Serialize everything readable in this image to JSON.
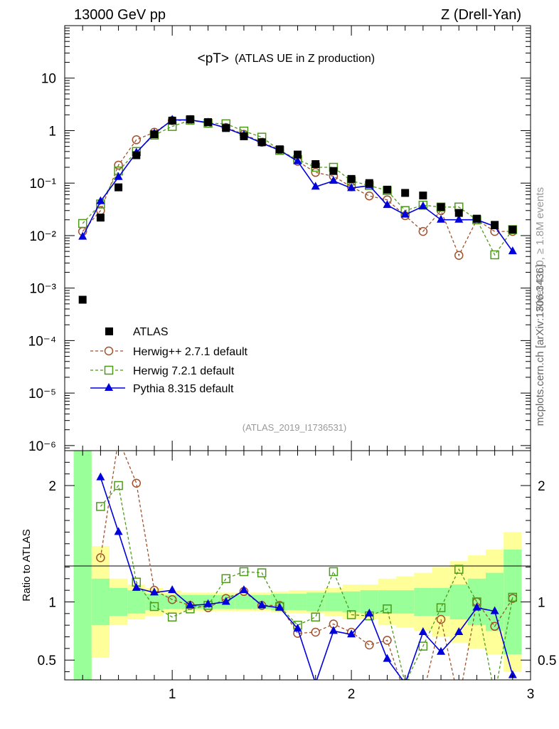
{
  "header": {
    "energy_label": "13000 GeV pp",
    "process_label": "Z (Drell-Yan)"
  },
  "side_labels": {
    "rivet": "Rivet 4.1.0, ≥ 1.8M events",
    "mcplots": "mcplots.cern.ch [arXiv:1306.3436]"
  },
  "chart_data": [
    {
      "type": "scatter",
      "panel": "main",
      "title": "<pT> (ATLAS UE in Z production)",
      "title_main": "<pT>",
      "title_sub": "(ATLAS UE in Z production)",
      "analysis_id": "(ATLAS_2019_I1736531)",
      "yscale": "log",
      "xlim": [
        0.4,
        3.0
      ],
      "ylim": [
        8e-07,
        100
      ],
      "y_ticks": [
        {
          "value": 10,
          "label": "10"
        },
        {
          "value": 1,
          "label": "1"
        },
        {
          "value": 0.1,
          "label": "10⁻¹"
        },
        {
          "value": 0.01,
          "label": "10⁻²"
        },
        {
          "value": 0.001,
          "label": "10⁻³"
        },
        {
          "value": 0.0001,
          "label": "10⁻⁴"
        },
        {
          "value": 1e-05,
          "label": "10⁻⁵"
        },
        {
          "value": 1e-06,
          "label": "10⁻⁶"
        }
      ],
      "legend_position": "bottom-left",
      "series": [
        {
          "name": "ATLAS",
          "legend_label": "ATLAS",
          "color": "#000000",
          "marker": "square-filled",
          "line": "none",
          "x": [
            0.5,
            0.6,
            0.7,
            0.8,
            0.9,
            1.0,
            1.1,
            1.2,
            1.3,
            1.4,
            1.5,
            1.6,
            1.7,
            1.8,
            1.9,
            2.0,
            2.1,
            2.2,
            2.3,
            2.4,
            2.5,
            2.6,
            2.7,
            2.8,
            2.9
          ],
          "y": [
            0.0006,
            0.022,
            0.083,
            0.34,
            0.85,
            1.55,
            1.65,
            1.45,
            1.12,
            0.78,
            0.6,
            0.44,
            0.35,
            0.23,
            0.17,
            0.12,
            0.1,
            0.075,
            0.065,
            0.058,
            0.035,
            0.027,
            0.021,
            0.016,
            0.013
          ]
        },
        {
          "name": "Herwig++ 2.7.1 default",
          "legend_label": "Herwig++ 2.7.1 default",
          "color": "#a0522d",
          "marker": "circle-open",
          "line": "dashed",
          "x": [
            0.5,
            0.6,
            0.7,
            0.8,
            0.9,
            1.0,
            1.1,
            1.2,
            1.3,
            1.4,
            1.5,
            1.6,
            1.7,
            1.8,
            1.9,
            2.0,
            2.1,
            2.2,
            2.3,
            2.4,
            2.5,
            2.6,
            2.7,
            2.8,
            2.9
          ],
          "y": [
            0.012,
            0.03,
            0.22,
            0.67,
            0.93,
            1.55,
            1.6,
            1.38,
            1.15,
            0.85,
            0.6,
            0.43,
            0.26,
            0.16,
            0.135,
            0.085,
            0.057,
            0.048,
            0.024,
            0.012,
            0.03,
            0.0042,
            0.02,
            0.012,
            0.012
          ]
        },
        {
          "name": "Herwig 7.2.1 default",
          "legend_label": "Herwig 7.2.1 default",
          "color": "#4d9a1a",
          "marker": "square-open",
          "line": "dashed",
          "x": [
            0.5,
            0.6,
            0.7,
            0.8,
            0.9,
            1.0,
            1.1,
            1.2,
            1.3,
            1.4,
            1.5,
            1.6,
            1.7,
            1.8,
            1.9,
            2.0,
            2.1,
            2.2,
            2.3,
            2.4,
            2.5,
            2.6,
            2.7,
            2.8,
            2.9
          ],
          "y": [
            0.017,
            0.04,
            0.17,
            0.4,
            0.82,
            1.2,
            1.58,
            1.38,
            1.35,
            0.98,
            0.75,
            0.42,
            0.28,
            0.2,
            0.2,
            0.11,
            0.09,
            0.072,
            0.03,
            0.038,
            0.035,
            0.035,
            0.02,
            0.0043,
            0.013
          ]
        },
        {
          "name": "Pythia 8.315 default",
          "legend_label": "Pythia 8.315 default",
          "color": "#0000dd",
          "marker": "triangle-filled",
          "line": "solid",
          "x": [
            0.5,
            0.6,
            0.7,
            0.8,
            0.9,
            1.0,
            1.1,
            1.2,
            1.3,
            1.4,
            1.5,
            1.6,
            1.7,
            1.8,
            1.9,
            2.0,
            2.1,
            2.2,
            2.3,
            2.4,
            2.5,
            2.6,
            2.7,
            2.8,
            2.9
          ],
          "y": [
            0.0095,
            0.045,
            0.13,
            0.38,
            0.88,
            1.6,
            1.6,
            1.42,
            1.12,
            0.82,
            0.58,
            0.42,
            0.26,
            0.085,
            0.11,
            0.08,
            0.09,
            0.038,
            0.025,
            0.036,
            0.02,
            0.02,
            0.02,
            0.015,
            0.005
          ]
        }
      ]
    },
    {
      "type": "line",
      "panel": "ratio",
      "ylabel": "Ratio to ATLAS",
      "xlim": [
        0.4,
        3.0
      ],
      "ylim": [
        0.33,
        2.3
      ],
      "x_ticks": [
        {
          "value": 1,
          "label": "1"
        },
        {
          "value": 2,
          "label": "2"
        },
        {
          "value": 3,
          "label": "3"
        }
      ],
      "y_ticks": [
        {
          "value": 0.5,
          "label": "0.5"
        },
        {
          "value": 1,
          "label": "1"
        },
        {
          "value": 2,
          "label": "2"
        }
      ],
      "uncertainty_band": {
        "inner_color": "#99ff99",
        "outer_color": "#ffff99",
        "x_edges": [
          0.45,
          0.55,
          0.65,
          0.75,
          0.85,
          0.95,
          1.05,
          1.15,
          1.25,
          1.35,
          1.45,
          1.55,
          1.65,
          1.75,
          1.85,
          1.95,
          2.05,
          2.15,
          2.25,
          2.35,
          2.45,
          2.55,
          2.65,
          2.75,
          2.85,
          2.95
        ],
        "inner_half": [
          2.0,
          0.2,
          0.12,
          0.1,
          0.07,
          0.06,
          0.06,
          0.06,
          0.06,
          0.06,
          0.06,
          0.07,
          0.07,
          0.08,
          0.08,
          0.09,
          0.1,
          0.1,
          0.1,
          0.12,
          0.12,
          0.15,
          0.2,
          0.25,
          0.45
        ],
        "outer_half": [
          2.0,
          0.48,
          0.2,
          0.15,
          0.12,
          0.1,
          0.08,
          0.08,
          0.08,
          0.08,
          0.08,
          0.09,
          0.1,
          0.1,
          0.12,
          0.15,
          0.15,
          0.2,
          0.22,
          0.25,
          0.3,
          0.35,
          0.4,
          0.45,
          0.6
        ]
      },
      "series": [
        {
          "name": "Herwig++ 2.7.1 default",
          "color": "#a0522d",
          "marker": "circle-open",
          "line": "dashed",
          "x": [
            0.6,
            0.7,
            0.8,
            0.9,
            1.0,
            1.1,
            1.2,
            1.3,
            1.4,
            1.5,
            1.6,
            1.7,
            1.8,
            1.9,
            2.0,
            2.1,
            2.2,
            2.3,
            2.4,
            2.5,
            2.6,
            2.7,
            2.8,
            2.9
          ],
          "y": [
            1.38,
            2.4,
            2.02,
            1.1,
            1.02,
            0.97,
            0.95,
            1.03,
            1.09,
            0.97,
            0.97,
            0.73,
            0.74,
            0.81,
            0.74,
            0.63,
            0.67,
            0.2,
            0.2,
            0.85,
            0.15,
            1.0,
            0.79,
            1.03
          ]
        },
        {
          "name": "Herwig 7.2.1 default",
          "color": "#4d9a1a",
          "marker": "square-open",
          "line": "dashed",
          "x": [
            0.6,
            0.7,
            0.8,
            0.9,
            1.0,
            1.1,
            1.2,
            1.3,
            1.4,
            1.5,
            1.6,
            1.7,
            1.8,
            1.9,
            2.0,
            2.1,
            2.2,
            2.3,
            2.4,
            2.5,
            2.6,
            2.7,
            2.8,
            2.9
          ],
          "y": [
            1.82,
            2.0,
            1.17,
            0.96,
            0.87,
            0.94,
            0.97,
            1.2,
            1.26,
            1.25,
            0.96,
            0.8,
            0.87,
            1.26,
            0.89,
            0.88,
            0.94,
            0.3,
            0.62,
            0.95,
            1.28,
            1.0,
            0.2,
            1.04
          ]
        },
        {
          "name": "Pythia 8.315 default",
          "color": "#0000dd",
          "marker": "triangle-filled",
          "line": "solid",
          "x": [
            0.6,
            0.7,
            0.8,
            0.9,
            1.0,
            1.1,
            1.2,
            1.3,
            1.4,
            1.5,
            1.6,
            1.7,
            1.8,
            1.9,
            2.0,
            2.1,
            2.2,
            2.3,
            2.4,
            2.5,
            2.6,
            2.7,
            2.8,
            2.9
          ],
          "y": [
            2.07,
            1.6,
            1.12,
            1.08,
            1.1,
            0.97,
            0.98,
            1.0,
            1.1,
            0.97,
            0.95,
            0.77,
            0.3,
            0.75,
            0.72,
            0.9,
            0.51,
            0.3,
            0.74,
            0.57,
            0.74,
            0.95,
            0.92,
            0.37
          ]
        }
      ]
    }
  ]
}
